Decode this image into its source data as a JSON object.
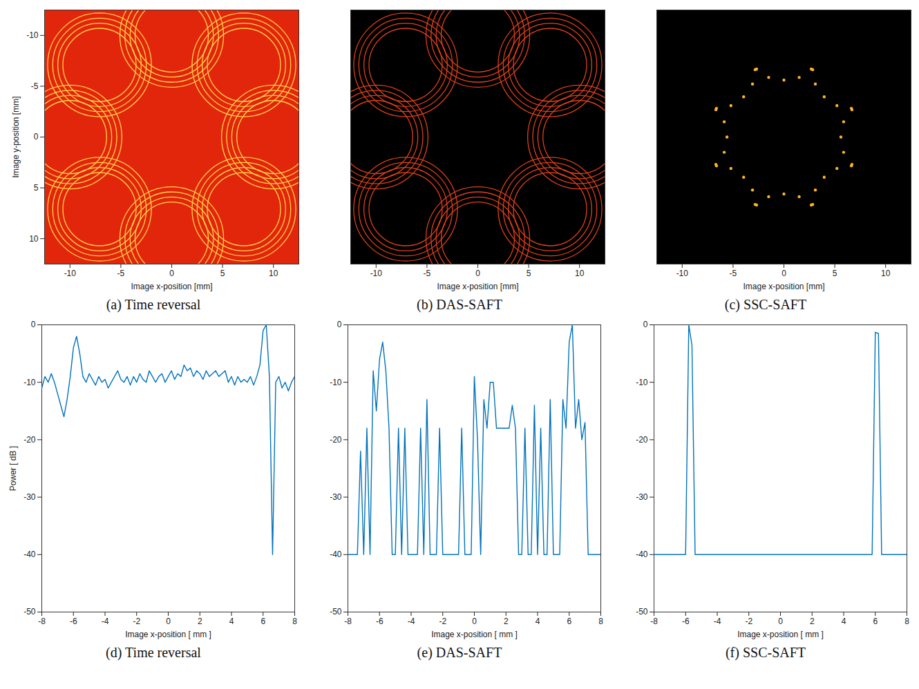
{
  "chart_data": [
    {
      "type": "circles",
      "title": "(a) Time reversal",
      "x_label": "Image x-position [mm]",
      "y_label": "Image y-position [mm]",
      "xlim": [
        -12.5,
        12.5
      ],
      "ylim": [
        -12.5,
        12.5
      ],
      "xticks": [
        -10,
        -5,
        0,
        5,
        10
      ],
      "yticks": [
        -10,
        -5,
        0,
        5,
        10
      ],
      "centers_x": [
        10,
        7.1,
        0,
        -7.1,
        -10,
        -7.1,
        0,
        7.1
      ],
      "centers_y": [
        0,
        7.1,
        10,
        7.1,
        0,
        -7.1,
        -10,
        -7.1
      ],
      "radii": [
        3.6,
        4.1,
        4.6,
        5.1
      ],
      "color": "#ffd54a"
    },
    {
      "type": "circles",
      "title": "(b) DAS-SAFT",
      "x_label": "Image x-position [mm]",
      "xlim": [
        -12.5,
        12.5
      ],
      "ylim": [
        -12.5,
        12.5
      ],
      "xticks": [
        -10,
        -5,
        0,
        5,
        10
      ],
      "tick_labels": "x",
      "centers_x": [
        10,
        7.1,
        0,
        -7.1,
        -10,
        -7.1,
        0,
        7.1
      ],
      "centers_y": [
        0,
        7.1,
        10,
        7.1,
        0,
        -7.1,
        -10,
        -7.1
      ],
      "radii": [
        3.6,
        4.1,
        4.6,
        5.1
      ],
      "color": "#e0401a"
    },
    {
      "type": "scatter",
      "title": "(c) SSC-SAFT",
      "x_label": "Image x-position [mm]",
      "xlim": [
        -12.5,
        12.5
      ],
      "ylim": [
        -12.5,
        12.5
      ],
      "xticks": [
        -10,
        -5,
        0,
        5,
        10
      ],
      "tick_labels": "x",
      "x": [
        6.63,
        5.87,
        5.6,
        5.87,
        6.63,
        2.69,
        3.09,
        3.96,
        5.21,
        6.69,
        -2.83,
        -1.5,
        0,
        1.5,
        2.83,
        -6.69,
        -5.21,
        -3.96,
        -3.09,
        -2.69,
        -6.63,
        -5.87,
        -5.6,
        -5.87,
        -6.63,
        -2.69,
        -3.09,
        -3.96,
        -5.21,
        -6.69,
        2.83,
        1.5,
        0,
        -1.5,
        -2.83,
        6.69,
        5.21,
        3.96,
        3.09,
        2.69
      ],
      "y": [
        2.83,
        1.5,
        0,
        -1.5,
        -2.83,
        6.69,
        5.21,
        3.96,
        3.09,
        2.69,
        6.63,
        5.87,
        5.6,
        5.87,
        6.63,
        2.69,
        3.09,
        3.96,
        5.21,
        6.69,
        -2.83,
        -1.5,
        0,
        1.5,
        2.83,
        -6.69,
        -5.21,
        -3.96,
        -3.09,
        -2.69,
        -6.63,
        -5.87,
        -5.6,
        -5.87,
        -6.63,
        -2.69,
        -3.09,
        -3.96,
        -5.21,
        -6.69
      ],
      "color": "#ffb326"
    },
    {
      "type": "line",
      "title": "(d) Time reversal",
      "x_label": "Image x-position [ mm ]",
      "y_label": "Power [ dB ]",
      "xlim": [
        -8,
        8
      ],
      "ylim": [
        -50,
        0
      ],
      "xticks": [
        -8,
        -6,
        -4,
        -2,
        0,
        2,
        4,
        6,
        8
      ],
      "yticks": [
        0,
        -10,
        -20,
        -30,
        -40,
        -50
      ],
      "color": "#0072bd",
      "x": [
        -8,
        -7.8,
        -7.6,
        -7.4,
        -7.2,
        -7,
        -6.8,
        -6.6,
        -6.4,
        -6.2,
        -6,
        -5.8,
        -5.6,
        -5.4,
        -5.2,
        -5,
        -4.8,
        -4.6,
        -4.4,
        -4.2,
        -4,
        -3.8,
        -3.6,
        -3.4,
        -3.2,
        -3,
        -2.8,
        -2.6,
        -2.4,
        -2.2,
        -2,
        -1.8,
        -1.6,
        -1.4,
        -1.2,
        -1,
        -0.8,
        -0.6,
        -0.4,
        -0.2,
        0,
        0.2,
        0.4,
        0.6,
        0.8,
        1,
        1.2,
        1.4,
        1.6,
        1.8,
        2,
        2.2,
        2.4,
        2.6,
        2.8,
        3,
        3.2,
        3.4,
        3.6,
        3.8,
        4,
        4.2,
        4.4,
        4.6,
        4.8,
        5,
        5.2,
        5.4,
        5.6,
        5.8,
        6,
        6.2,
        6.4,
        6.6,
        6.8,
        7,
        7.2,
        7.4,
        7.6,
        7.8,
        8
      ],
      "values": [
        -11,
        -9,
        -10,
        -8.5,
        -10,
        -12,
        -14,
        -16,
        -13,
        -9,
        -4,
        -2,
        -5,
        -9,
        -10,
        -8.5,
        -9.5,
        -10.5,
        -9,
        -10,
        -9.5,
        -11,
        -10,
        -9,
        -8,
        -9.5,
        -10,
        -9,
        -10.5,
        -9,
        -10,
        -8.5,
        -9.5,
        -10,
        -8,
        -9,
        -10,
        -9,
        -8.5,
        -10,
        -9,
        -8,
        -9.5,
        -8.5,
        -9,
        -7,
        -8,
        -7.5,
        -9,
        -8,
        -8.5,
        -9.5,
        -8,
        -9,
        -8.5,
        -8,
        -9,
        -8.5,
        -8,
        -10,
        -9,
        -10.5,
        -9,
        -10,
        -9.5,
        -10,
        -9,
        -10.5,
        -9,
        -7,
        -1,
        0,
        -9,
        -40,
        -10,
        -9,
        -11,
        -10,
        -11.5,
        -10,
        -9
      ]
    },
    {
      "type": "line",
      "title": "(e) DAS-SAFT",
      "x_label": "Image x-position [ mm ]",
      "xlim": [
        -8,
        8
      ],
      "ylim": [
        -50,
        0
      ],
      "xticks": [
        -8,
        -6,
        -4,
        -2,
        0,
        2,
        4,
        6,
        8
      ],
      "yticks": [
        0,
        -10,
        -20,
        -30,
        -40,
        -50
      ],
      "color": "#0072bd",
      "x": [
        -8,
        -7.8,
        -7.6,
        -7.4,
        -7.2,
        -7,
        -6.8,
        -6.6,
        -6.4,
        -6.2,
        -6,
        -5.8,
        -5.6,
        -5.4,
        -5.2,
        -5,
        -4.8,
        -4.6,
        -4.4,
        -4.2,
        -4,
        -3.8,
        -3.6,
        -3.4,
        -3.2,
        -3,
        -2.8,
        -2.6,
        -2.4,
        -2.2,
        -2,
        -1.8,
        -1.6,
        -1.4,
        -1.2,
        -1,
        -0.8,
        -0.6,
        -0.4,
        -0.2,
        0,
        0.2,
        0.4,
        0.6,
        0.8,
        1,
        1.2,
        1.4,
        1.6,
        1.8,
        2,
        2.2,
        2.4,
        2.6,
        2.8,
        3,
        3.2,
        3.4,
        3.6,
        3.8,
        4,
        4.2,
        4.4,
        4.6,
        4.8,
        5,
        5.2,
        5.4,
        5.6,
        5.8,
        6,
        6.2,
        6.4,
        6.6,
        6.8,
        7,
        7.2,
        7.4,
        7.6,
        7.8,
        8
      ],
      "values": [
        -40,
        -40,
        -40,
        -40,
        -22,
        -40,
        -18,
        -40,
        -8,
        -15,
        -6,
        -3,
        -8,
        -18,
        -40,
        -40,
        -18,
        -40,
        -18,
        -40,
        -40,
        -40,
        -40,
        -18,
        -40,
        -13,
        -40,
        -40,
        -40,
        -18,
        -40,
        -40,
        -40,
        -40,
        -40,
        -40,
        -18,
        -40,
        -40,
        -40,
        -9,
        -20,
        -40,
        -13,
        -18,
        -10,
        -10,
        -18,
        -18,
        -18,
        -18,
        -18,
        -14,
        -18,
        -40,
        -40,
        -18,
        -40,
        -40,
        -14,
        -40,
        -18,
        -40,
        -40,
        -13,
        -40,
        -40,
        -40,
        -13,
        -18,
        -3,
        0,
        -18,
        -13,
        -20,
        -17,
        -40,
        -40,
        -40,
        -40,
        -40
      ]
    },
    {
      "type": "line",
      "title": "(f) SSC-SAFT",
      "x_label": "Image x-position [ mm ]",
      "xlim": [
        -8,
        8
      ],
      "ylim": [
        -50,
        0
      ],
      "xticks": [
        -8,
        -6,
        -4,
        -2,
        0,
        2,
        4,
        6,
        8
      ],
      "yticks": [
        0,
        -10,
        -20,
        -30,
        -40,
        -50
      ],
      "color": "#0072bd",
      "x": [
        -8,
        -7.8,
        -7.6,
        -7.4,
        -7.2,
        -7,
        -6.8,
        -6.6,
        -6.4,
        -6.2,
        -6,
        -5.8,
        -5.6,
        -5.4,
        -5.2,
        -5,
        -4.8,
        -4.6,
        -4.4,
        -4.2,
        -4,
        -3.8,
        -3.6,
        -3.4,
        -3.2,
        -3,
        -2.8,
        -2.6,
        -2.4,
        -2.2,
        -2,
        -1.8,
        -1.6,
        -1.4,
        -1.2,
        -1,
        -0.8,
        -0.6,
        -0.4,
        -0.2,
        0,
        0.2,
        0.4,
        0.6,
        0.8,
        1,
        1.2,
        1.4,
        1.6,
        1.8,
        2,
        2.2,
        2.4,
        2.6,
        2.8,
        3,
        3.2,
        3.4,
        3.6,
        3.8,
        4,
        4.2,
        4.4,
        4.6,
        4.8,
        5,
        5.2,
        5.4,
        5.6,
        5.8,
        6,
        6.2,
        6.4,
        6.6,
        6.8,
        7,
        7.2,
        7.4,
        7.6,
        7.8,
        8
      ],
      "values": [
        -40,
        -40,
        -40,
        -40,
        -40,
        -40,
        -40,
        -40,
        -40,
        -40,
        -40,
        0,
        -3.5,
        -40,
        -40,
        -40,
        -40,
        -40,
        -40,
        -40,
        -40,
        -40,
        -40,
        -40,
        -40,
        -40,
        -40,
        -40,
        -40,
        -40,
        -40,
        -40,
        -40,
        -40,
        -40,
        -40,
        -40,
        -40,
        -40,
        -40,
        -40,
        -40,
        -40,
        -40,
        -40,
        -40,
        -40,
        -40,
        -40,
        -40,
        -40,
        -40,
        -40,
        -40,
        -40,
        -40,
        -40,
        -40,
        -40,
        -40,
        -40,
        -40,
        -40,
        -40,
        -40,
        -40,
        -40,
        -40,
        -40,
        -40,
        -1.3,
        -1.5,
        -40,
        -40,
        -40,
        -40,
        -40,
        -40,
        -40,
        -40,
        -40
      ]
    }
  ]
}
